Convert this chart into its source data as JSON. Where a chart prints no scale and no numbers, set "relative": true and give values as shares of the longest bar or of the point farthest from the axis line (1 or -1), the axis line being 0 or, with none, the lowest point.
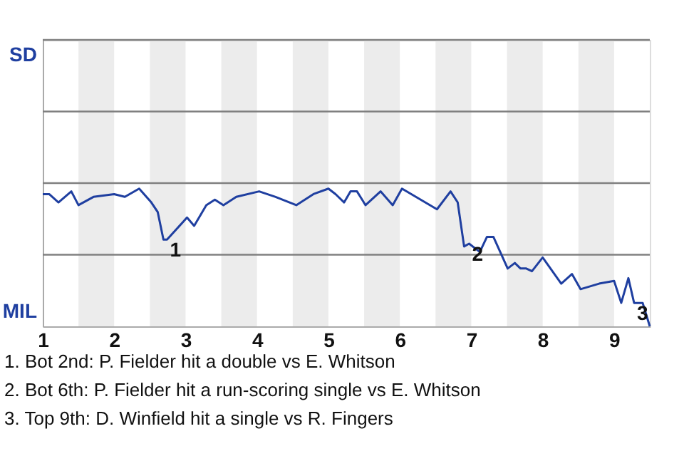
{
  "chart_data": {
    "type": "line",
    "relative": true,
    "x": [
      1,
      1.09,
      1.22,
      1.4,
      1.5,
      1.71,
      2,
      2.15,
      2.35,
      2.52,
      2.61,
      2.69,
      2.74,
      3.02,
      3.12,
      3.29,
      3.41,
      3.53,
      3.71,
      4.03,
      4.26,
      4.55,
      4.79,
      5,
      5.1,
      5.22,
      5.31,
      5.4,
      5.52,
      5.73,
      5.9,
      6.03,
      6.52,
      6.71,
      6.81,
      6.9,
      6.97,
      7.12,
      7.22,
      7.31,
      7.51,
      7.61,
      7.69,
      7.77,
      7.85,
      8,
      8.26,
      8.41,
      8.53,
      8.79,
      9,
      9.1,
      9.2,
      9.28,
      9.4,
      9.5
    ],
    "series": [
      {
        "color": "#1f3fa0",
        "values": [
          0.96,
          0.96,
          0.9,
          0.98,
          0.88,
          0.94,
          0.96,
          0.94,
          1,
          0.9,
          0.83,
          0.63,
          0.63,
          0.79,
          0.73,
          0.88,
          0.92,
          0.88,
          0.94,
          0.98,
          0.94,
          0.88,
          0.96,
          1,
          0.96,
          0.9,
          0.98,
          0.98,
          0.88,
          0.98,
          0.88,
          1,
          0.85,
          0.98,
          0.9,
          0.58,
          0.6,
          0.54,
          0.65,
          0.65,
          0.42,
          0.46,
          0.42,
          0.42,
          0.4,
          0.5,
          0.31,
          0.38,
          0.27,
          0.31,
          0.33,
          0.17,
          0.35,
          0.17,
          0.17,
          0
        ]
      }
    ],
    "xlim": [
      1,
      9.5
    ],
    "xticks": [
      1,
      2,
      3,
      4,
      5,
      6,
      7,
      8,
      9
    ],
    "bands": [
      {
        "axis": "x",
        "from": 1.5,
        "to": 2,
        "color": "#ececec"
      },
      {
        "axis": "x",
        "from": 2.5,
        "to": 3,
        "color": "#ececec"
      },
      {
        "axis": "x",
        "from": 3.5,
        "to": 4,
        "color": "#ececec"
      },
      {
        "axis": "x",
        "from": 4.5,
        "to": 5,
        "color": "#ececec"
      },
      {
        "axis": "x",
        "from": 5.5,
        "to": 6,
        "color": "#ececec"
      },
      {
        "axis": "x",
        "from": 6.5,
        "to": 7,
        "color": "#ececec"
      },
      {
        "axis": "x",
        "from": 7.5,
        "to": 8,
        "color": "#ececec"
      },
      {
        "axis": "x",
        "from": 8.5,
        "to": 9,
        "color": "#ececec"
      }
    ],
    "ref_lines": [
      {
        "axis": "y",
        "value": 0.52,
        "label": null,
        "color": "#808080"
      },
      {
        "axis": "y",
        "value": 1.04,
        "label": null,
        "color": "#808080"
      },
      {
        "axis": "y",
        "value": 1.56,
        "label": null,
        "color": "#808080"
      },
      {
        "axis": "y",
        "value": 2.08,
        "label": "SD",
        "color": "#808080"
      }
    ],
    "annotations": [
      "MIL",
      {
        "text": "1",
        "x": 2.74,
        "y": 0.63
      },
      {
        "text": "2",
        "x": 6.97,
        "y": 0.6
      },
      {
        "text": "3",
        "x": 9.28,
        "y": 0.17
      },
      "1. Bot 2nd: P. Fielder hit a double vs E. Whitson",
      "2. Bot 6th: P. Fielder hit a run-scoring single vs E. Whitson",
      "3. Top 9th: D. Winfield hit a single vs R. Fingers"
    ],
    "marker": "none",
    "line_style": "solid"
  }
}
